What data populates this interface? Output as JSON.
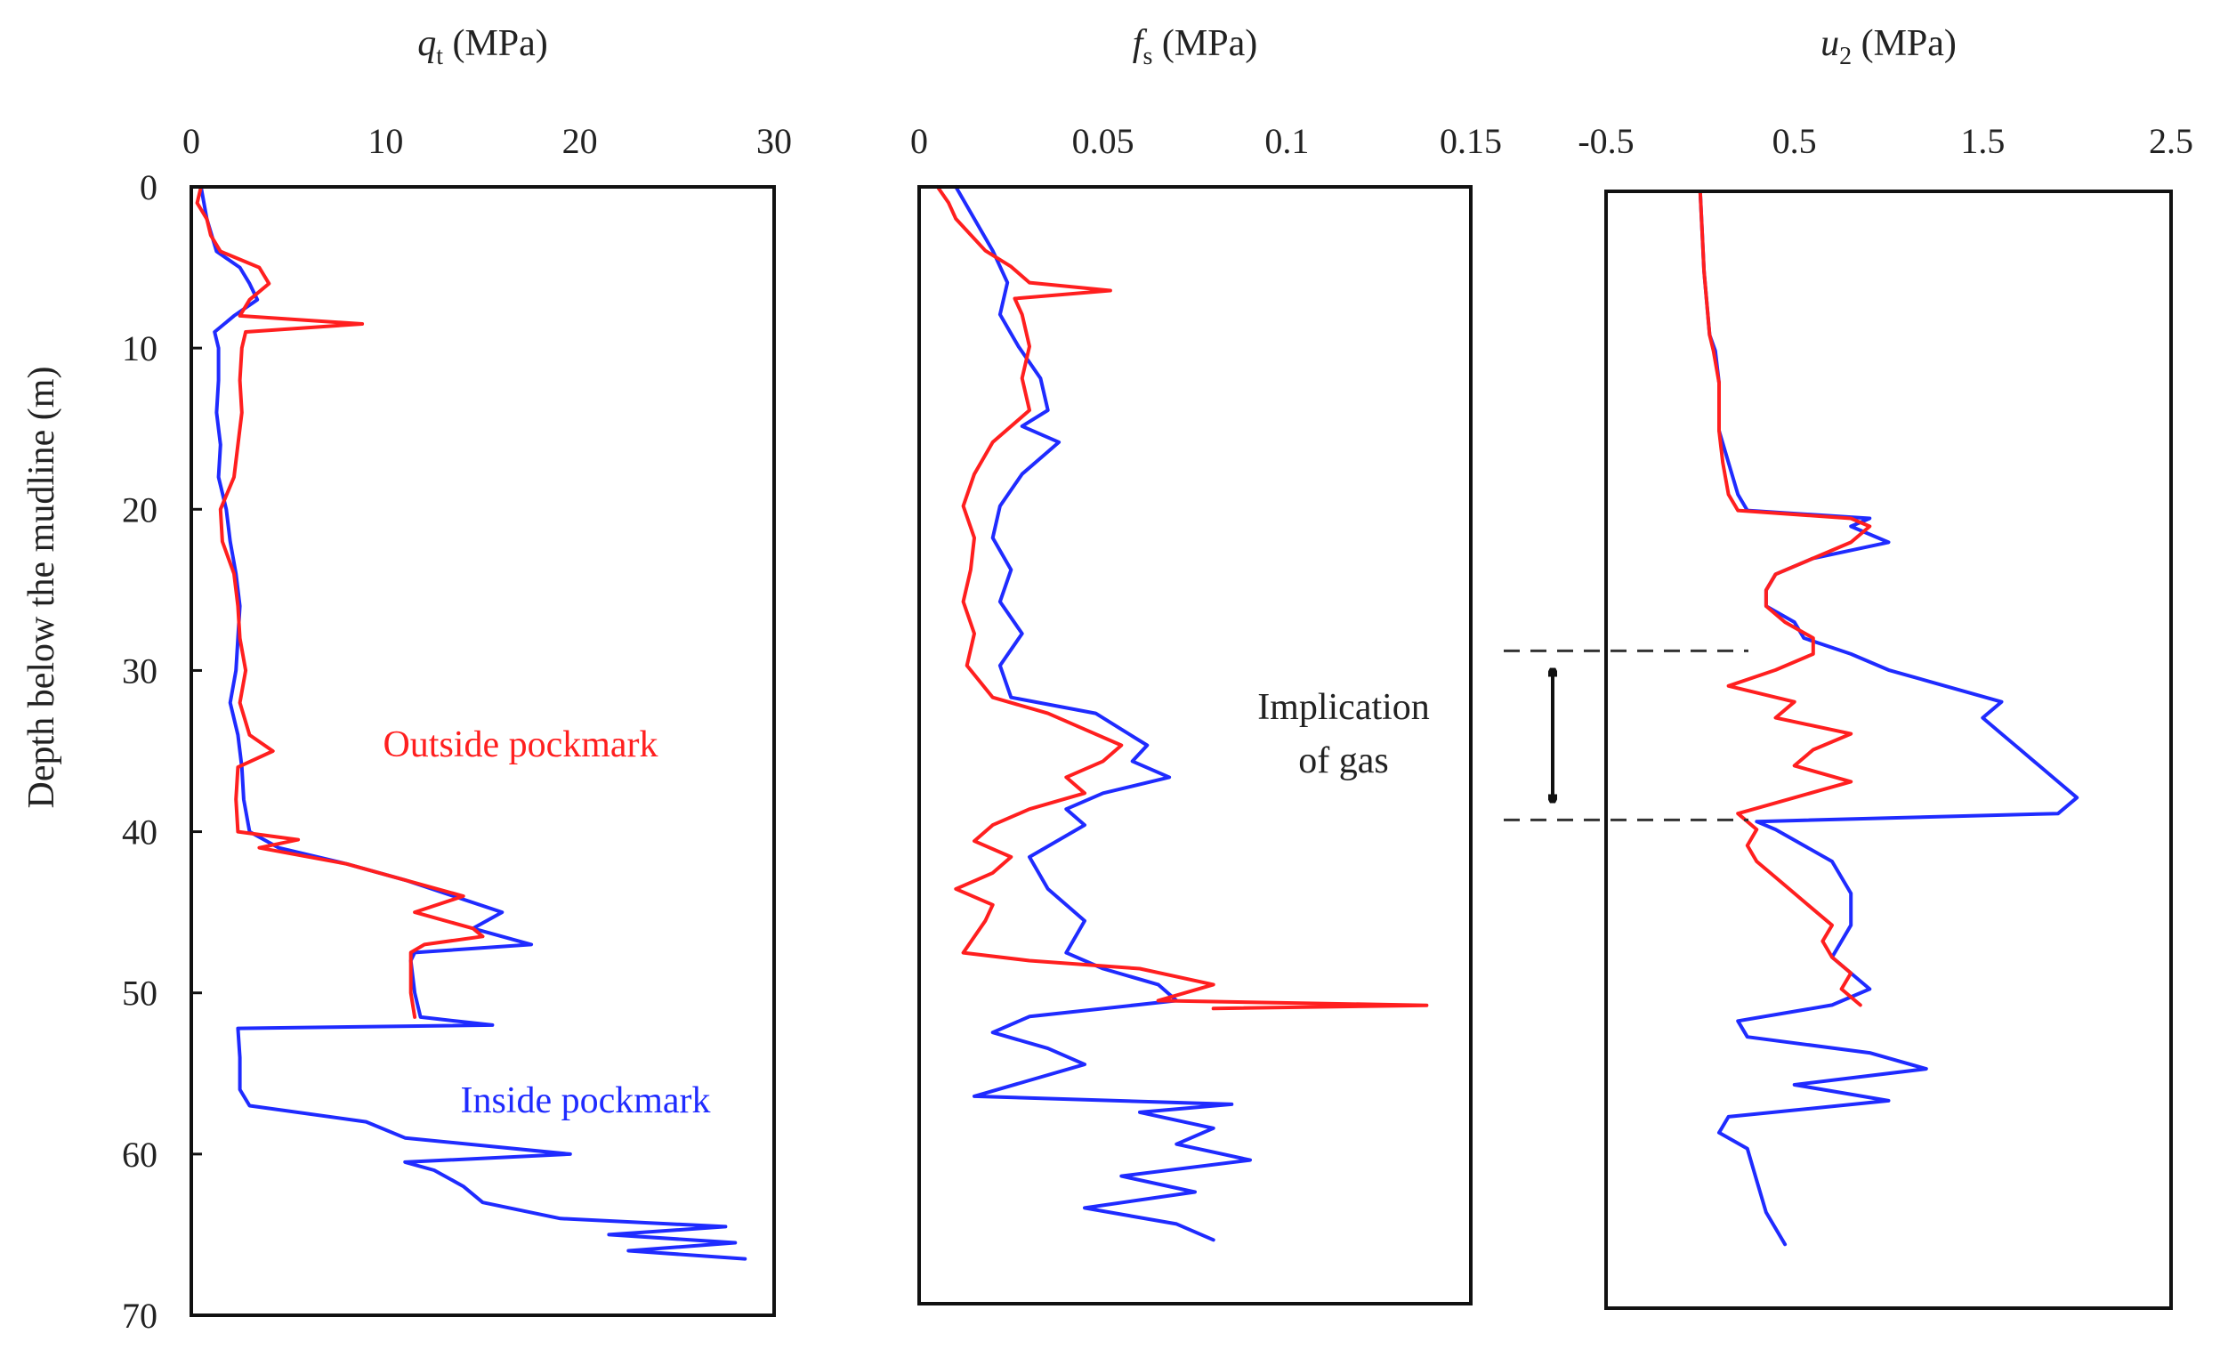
{
  "figure": {
    "ylabel": "Depth below the mudline (m)",
    "annotations": {
      "outside": "Outside pockmark",
      "inside": "Inside pockmark",
      "gas_line1": "Implication",
      "gas_line2": "of gas"
    },
    "gas_zone": [
      28.8,
      39.4
    ],
    "colors": {
      "outside": "#ff1f1f",
      "inside": "#1f2bff"
    }
  },
  "chart_data": [
    {
      "type": "line",
      "xlabel": {
        "sym": "q",
        "sub": "t",
        "unit": " (MPa)"
      },
      "xlim": [
        0,
        30
      ],
      "xticks": [
        "0",
        "10",
        "20",
        "30"
      ],
      "ylim": [
        0,
        70
      ],
      "yticks": [
        "0",
        "10",
        "20",
        "30",
        "40",
        "50",
        "60",
        "70"
      ],
      "series": [
        {
          "key": "inside",
          "depth": [
            0,
            2,
            4,
            5,
            6,
            7,
            8,
            9,
            10,
            12,
            14,
            16,
            18,
            20,
            22,
            24,
            26,
            28,
            30,
            32,
            34,
            36,
            38,
            40,
            41,
            42,
            43,
            44,
            45,
            46,
            47,
            47.5,
            48,
            50,
            51.5,
            52,
            52.2,
            54,
            56,
            57,
            58,
            59,
            60,
            60.5,
            61,
            62,
            63,
            64,
            64.5,
            65,
            65.5,
            66,
            66.5
          ],
          "value": [
            0.5,
            0.8,
            1.3,
            2.5,
            3.0,
            3.4,
            2.2,
            1.2,
            1.4,
            1.4,
            1.3,
            1.5,
            1.4,
            1.8,
            2.0,
            2.3,
            2.5,
            2.4,
            2.3,
            2.0,
            2.4,
            2.6,
            2.7,
            3.0,
            4.5,
            8.0,
            11.0,
            13.5,
            16.0,
            14.5,
            17.5,
            11.5,
            11.3,
            11.5,
            11.8,
            15.5,
            2.4,
            2.5,
            2.5,
            3.0,
            9.0,
            11.0,
            19.5,
            11.0,
            12.5,
            14.0,
            15.0,
            19.0,
            27.5,
            21.5,
            28.0,
            22.5,
            28.5
          ]
        },
        {
          "key": "outside",
          "depth": [
            0,
            1,
            2,
            3,
            4,
            5,
            6,
            7,
            8,
            8.5,
            9,
            10,
            12,
            14,
            16,
            18,
            20,
            22,
            24,
            26,
            28,
            30,
            32,
            34,
            35,
            36,
            38,
            40,
            40.5,
            41,
            42,
            43,
            44,
            45,
            46,
            46.5,
            47,
            47.5,
            48,
            50,
            51.5
          ],
          "value": [
            0.5,
            0.3,
            0.8,
            1.0,
            1.5,
            3.5,
            4.0,
            3.0,
            2.5,
            8.8,
            2.8,
            2.6,
            2.5,
            2.6,
            2.4,
            2.2,
            1.5,
            1.6,
            2.2,
            2.4,
            2.5,
            2.8,
            2.5,
            3.0,
            4.2,
            2.4,
            2.3,
            2.4,
            5.5,
            3.5,
            8.0,
            11.0,
            14.0,
            11.5,
            14.5,
            15.0,
            12.0,
            11.3,
            11.3,
            11.3,
            11.5
          ]
        }
      ]
    },
    {
      "type": "line",
      "xlabel": {
        "sym": "f",
        "sub": "s",
        "unit": " (MPa)"
      },
      "xlim": [
        0,
        0.15
      ],
      "xticks": [
        "0",
        "0.05",
        "0.1",
        "0.15"
      ],
      "ylim": [
        0,
        70
      ],
      "series": [
        {
          "key": "inside",
          "depth": [
            0,
            2,
            4,
            6,
            8,
            10,
            12,
            14,
            15,
            16,
            18,
            20,
            22,
            24,
            26,
            28,
            30,
            32,
            33,
            34,
            35,
            36,
            37,
            38,
            39,
            40,
            42,
            44,
            46,
            48,
            49,
            50,
            51,
            52,
            53,
            54,
            55,
            56,
            57,
            57.5,
            58,
            59,
            60,
            61,
            62,
            63,
            64,
            65,
            66
          ],
          "value": [
            0.01,
            0.015,
            0.02,
            0.024,
            0.022,
            0.027,
            0.033,
            0.035,
            0.028,
            0.038,
            0.028,
            0.022,
            0.02,
            0.025,
            0.022,
            0.028,
            0.022,
            0.025,
            0.048,
            0.055,
            0.062,
            0.058,
            0.068,
            0.05,
            0.04,
            0.045,
            0.03,
            0.035,
            0.045,
            0.04,
            0.05,
            0.065,
            0.07,
            0.03,
            0.02,
            0.035,
            0.045,
            0.03,
            0.015,
            0.085,
            0.06,
            0.08,
            0.07,
            0.09,
            0.055,
            0.075,
            0.045,
            0.07,
            0.08
          ]
        },
        {
          "key": "outside",
          "depth": [
            0,
            1,
            2,
            4,
            5,
            6,
            6.5,
            7,
            8,
            10,
            12,
            14,
            16,
            18,
            20,
            22,
            24,
            26,
            28,
            30,
            32,
            33,
            34,
            35,
            36,
            37,
            38,
            39,
            40,
            41,
            42,
            43,
            44,
            45,
            46,
            47,
            48,
            48.5,
            49,
            50,
            51,
            51.3,
            51.5
          ],
          "value": [
            0.005,
            0.008,
            0.01,
            0.018,
            0.025,
            0.03,
            0.052,
            0.026,
            0.028,
            0.03,
            0.028,
            0.03,
            0.02,
            0.015,
            0.012,
            0.015,
            0.014,
            0.012,
            0.015,
            0.013,
            0.02,
            0.035,
            0.045,
            0.055,
            0.05,
            0.04,
            0.045,
            0.03,
            0.02,
            0.015,
            0.025,
            0.02,
            0.01,
            0.02,
            0.018,
            0.015,
            0.012,
            0.03,
            0.06,
            0.08,
            0.065,
            0.138,
            0.08
          ]
        }
      ]
    },
    {
      "type": "line",
      "xlabel": {
        "sym": "u",
        "sub": "2",
        "unit": " (MPa)"
      },
      "xlim": [
        -0.5,
        2.5
      ],
      "xticks": [
        "-0.5",
        "0.5",
        "1.5",
        "2.5"
      ],
      "ylim": [
        0,
        70
      ],
      "series": [
        {
          "key": "inside",
          "depth": [
            0,
            5,
            9,
            10,
            12,
            15,
            17,
            19,
            20,
            20.5,
            21,
            22,
            23,
            24,
            25,
            26,
            27,
            28,
            29,
            30,
            31,
            32,
            33,
            34,
            35,
            36,
            37,
            38,
            39,
            39.5,
            40,
            42,
            44,
            46,
            48,
            50,
            51,
            52,
            53,
            54,
            55,
            56,
            57,
            58,
            59,
            60,
            62,
            64,
            66
          ],
          "value": [
            0.0,
            0.02,
            0.05,
            0.08,
            0.1,
            0.1,
            0.15,
            0.2,
            0.25,
            0.9,
            0.8,
            1.0,
            0.6,
            0.4,
            0.35,
            0.35,
            0.5,
            0.55,
            0.8,
            1.0,
            1.3,
            1.6,
            1.5,
            1.6,
            1.7,
            1.8,
            1.9,
            2.0,
            1.9,
            0.3,
            0.4,
            0.7,
            0.8,
            0.8,
            0.7,
            0.9,
            0.7,
            0.2,
            0.25,
            0.9,
            1.2,
            0.5,
            1.0,
            0.15,
            0.1,
            0.25,
            0.3,
            0.35,
            0.45
          ]
        },
        {
          "key": "outside",
          "depth": [
            0,
            5,
            9,
            10,
            12,
            15,
            17,
            19,
            20,
            20.5,
            21,
            22,
            23,
            24,
            25,
            26,
            27,
            28,
            29,
            30,
            31,
            32,
            33,
            34,
            35,
            36,
            37,
            38,
            39,
            40,
            41,
            42,
            43,
            44,
            45,
            46,
            47,
            48,
            49,
            50,
            51
          ],
          "value": [
            0.0,
            0.02,
            0.05,
            0.07,
            0.1,
            0.1,
            0.12,
            0.15,
            0.2,
            0.8,
            0.9,
            0.8,
            0.6,
            0.4,
            0.35,
            0.35,
            0.45,
            0.6,
            0.6,
            0.4,
            0.15,
            0.5,
            0.4,
            0.8,
            0.6,
            0.5,
            0.8,
            0.5,
            0.2,
            0.3,
            0.25,
            0.3,
            0.4,
            0.5,
            0.6,
            0.7,
            0.65,
            0.7,
            0.8,
            0.75,
            0.85
          ]
        }
      ]
    }
  ]
}
